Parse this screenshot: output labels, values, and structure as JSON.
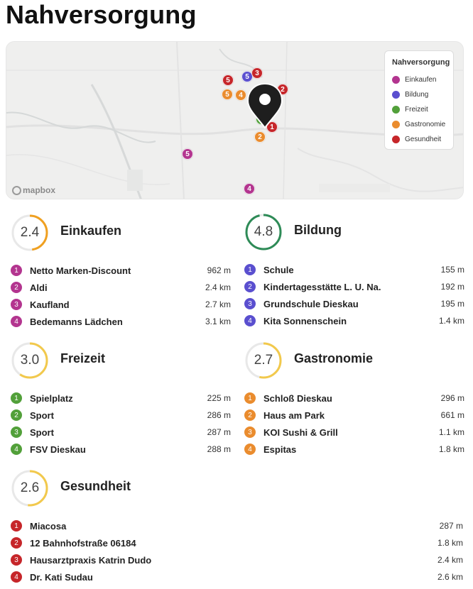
{
  "title": "Nahversorgung",
  "colors": {
    "einkaufen": "#b3358f",
    "bildung": "#5a4fcf",
    "freizeit": "#52a03a",
    "gastronomie": "#ea8c2e",
    "gesundheit": "#c6262a",
    "gauge_track": "#e8e8e8",
    "gauge_orange": "#f0a020",
    "gauge_green": "#2e8b57",
    "gauge_yellow": "#f2c94c"
  },
  "map": {
    "attribution": "mapbox",
    "legend": {
      "title": "Nahversorgung",
      "items": [
        {
          "label": "Einkaufen",
          "color": "#b3358f"
        },
        {
          "label": "Bildung",
          "color": "#5a4fcf"
        },
        {
          "label": "Freizeit",
          "color": "#52a03a"
        },
        {
          "label": "Gastronomie",
          "color": "#ea8c2e"
        },
        {
          "label": "Gesundheit",
          "color": "#c6262a"
        }
      ]
    },
    "markers": [
      {
        "n": "5",
        "color": "#c6262a"
      },
      {
        "n": "5",
        "color": "#5a4fcf"
      },
      {
        "n": "3",
        "color": "#c6262a"
      },
      {
        "n": "2",
        "color": "#c6262a"
      },
      {
        "n": "5",
        "color": "#ea8c2e"
      },
      {
        "n": "4",
        "color": "#ea8c2e"
      },
      {
        "n": "4",
        "color": "#52a03a"
      },
      {
        "n": "1",
        "color": "#c6262a"
      },
      {
        "n": "2",
        "color": "#ea8c2e"
      },
      {
        "n": "5",
        "color": "#b3358f"
      },
      {
        "n": "4",
        "color": "#b3358f"
      }
    ]
  },
  "sections": {
    "einkaufen": {
      "score": "2.4",
      "title": "Einkaufen",
      "items": [
        {
          "n": "1",
          "name": "Netto Marken-Discount",
          "dist": "962 m"
        },
        {
          "n": "2",
          "name": "Aldi",
          "dist": "2.4 km"
        },
        {
          "n": "3",
          "name": "Kaufland",
          "dist": "2.7 km"
        },
        {
          "n": "4",
          "name": "Bedemanns Lädchen",
          "dist": "3.1 km"
        }
      ]
    },
    "bildung": {
      "score": "4.8",
      "title": "Bildung",
      "items": [
        {
          "n": "1",
          "name": "Schule",
          "dist": "155 m"
        },
        {
          "n": "2",
          "name": "Kindertagesstätte L. U. Na.",
          "dist": "192 m"
        },
        {
          "n": "3",
          "name": "Grundschule Dieskau",
          "dist": "195 m"
        },
        {
          "n": "4",
          "name": "Kita Sonnenschein",
          "dist": "1.4 km"
        }
      ]
    },
    "freizeit": {
      "score": "3.0",
      "title": "Freizeit",
      "items": [
        {
          "n": "1",
          "name": "Spielplatz",
          "dist": "225 m"
        },
        {
          "n": "2",
          "name": "Sport",
          "dist": "286 m"
        },
        {
          "n": "3",
          "name": "Sport",
          "dist": "287 m"
        },
        {
          "n": "4",
          "name": "FSV Dieskau",
          "dist": "288 m"
        }
      ]
    },
    "gastronomie": {
      "score": "2.7",
      "title": "Gastronomie",
      "items": [
        {
          "n": "1",
          "name": "Schloß Dieskau",
          "dist": "296 m"
        },
        {
          "n": "2",
          "name": "Haus am Park",
          "dist": "661 m"
        },
        {
          "n": "3",
          "name": "KOI Sushi & Grill",
          "dist": "1.1 km"
        },
        {
          "n": "4",
          "name": "Espitas",
          "dist": "1.8 km"
        }
      ]
    },
    "gesundheit": {
      "score": "2.6",
      "title": "Gesundheit",
      "items": [
        {
          "n": "1",
          "name": "Miacosa",
          "dist": "287 m"
        },
        {
          "n": "2",
          "name": "12 Bahnhofstraße 06184",
          "dist": "1.8 km"
        },
        {
          "n": "3",
          "name": "Hausarztpraxis Katrin Dudo",
          "dist": "2.4 km"
        },
        {
          "n": "4",
          "name": "Dr. Kati Sudau",
          "dist": "2.6 km"
        }
      ]
    }
  }
}
